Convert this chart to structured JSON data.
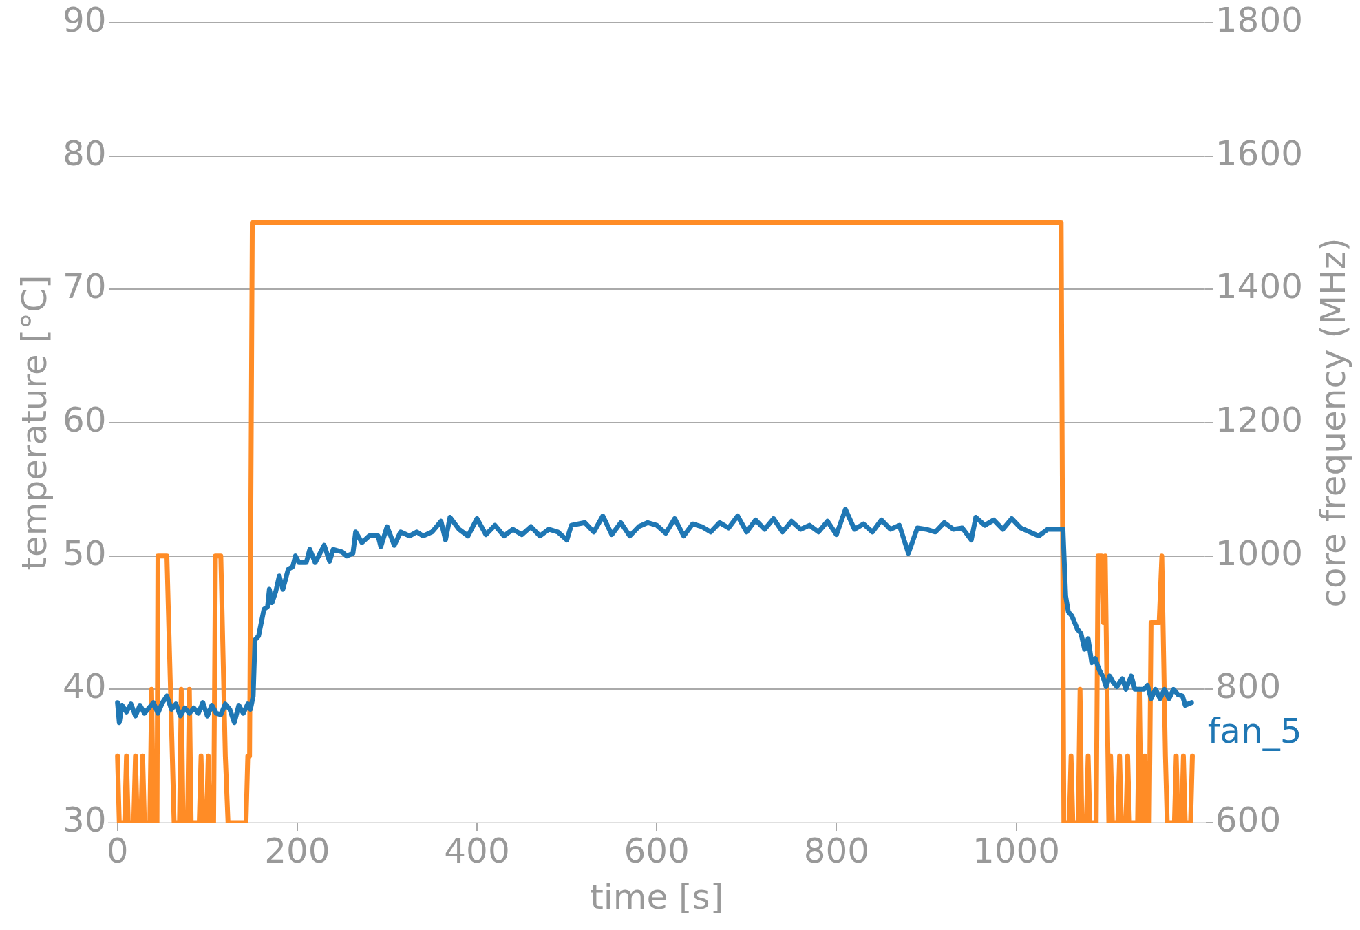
{
  "chart_data": {
    "type": "line",
    "xlabel": "time [s]",
    "ylabel": "temperature [°C]",
    "y2label": "core frequency (MHz)",
    "grid": "y",
    "xlim": [
      -10,
      1210
    ],
    "xticks": [
      0,
      200,
      400,
      600,
      800,
      1000
    ],
    "ylim": [
      30,
      90
    ],
    "yticks": [
      30,
      40,
      50,
      60,
      70,
      80,
      90
    ],
    "y2lim": [
      600,
      1800
    ],
    "y2ticks": [
      600,
      800,
      1000,
      1200,
      1400,
      1600,
      1800
    ],
    "series": [
      {
        "name": "fan_5",
        "color": "#1f77b4",
        "axis": "y",
        "x": [
          0,
          2,
          5,
          10,
          15,
          20,
          25,
          30,
          35,
          40,
          45,
          50,
          55,
          60,
          65,
          70,
          75,
          80,
          85,
          90,
          95,
          100,
          105,
          110,
          115,
          120,
          125,
          130,
          135,
          140,
          145,
          148,
          151,
          153,
          157,
          160,
          163,
          167,
          169,
          172,
          176,
          180,
          184,
          190,
          195,
          198,
          202,
          210,
          214,
          220,
          230,
          236,
          240,
          250,
          255,
          262,
          265,
          272,
          280,
          290,
          293,
          300,
          308,
          315,
          325,
          333,
          340,
          350,
          360,
          365,
          370,
          380,
          390,
          400,
          410,
          420,
          430,
          440,
          450,
          460,
          470,
          480,
          490,
          500,
          505,
          520,
          530,
          540,
          550,
          560,
          570,
          580,
          590,
          600,
          610,
          620,
          630,
          640,
          650,
          660,
          670,
          680,
          690,
          700,
          710,
          720,
          730,
          740,
          750,
          760,
          770,
          780,
          790,
          800,
          810,
          820,
          830,
          840,
          850,
          860,
          870,
          880,
          890,
          900,
          910,
          920,
          930,
          940,
          950,
          955,
          965,
          975,
          985,
          995,
          1005,
          1015,
          1025,
          1035,
          1045,
          1052,
          1055,
          1058,
          1062,
          1068,
          1072,
          1076,
          1080,
          1084,
          1088,
          1092,
          1096,
          1100,
          1104,
          1108,
          1112,
          1118,
          1122,
          1128,
          1132,
          1136,
          1142,
          1146,
          1150,
          1155,
          1160,
          1165,
          1170,
          1175,
          1180,
          1185,
          1188,
          1195
        ],
        "values": [
          39,
          37.5,
          38.8,
          38.3,
          38.9,
          38,
          38.8,
          38.2,
          38.6,
          39,
          38.2,
          39,
          39.5,
          38.5,
          38.9,
          38,
          38.6,
          38.2,
          38.6,
          38.2,
          39,
          38,
          38.8,
          38.2,
          38.1,
          38.9,
          38.5,
          37.5,
          38.8,
          38.2,
          38.9,
          38.5,
          39.5,
          43.7,
          44,
          45,
          46,
          46.2,
          47.5,
          46.5,
          47.3,
          48.5,
          47.5,
          49,
          49.2,
          50,
          49.5,
          49.5,
          50.5,
          49.5,
          50.8,
          49.6,
          50.5,
          50.3,
          50,
          50.2,
          51.8,
          51,
          51.5,
          51.5,
          50.7,
          52.2,
          50.8,
          51.8,
          51.5,
          51.8,
          51.5,
          51.8,
          52.6,
          51.2,
          52.9,
          52,
          51.5,
          52.8,
          51.6,
          52.3,
          51.5,
          52,
          51.6,
          52.2,
          51.5,
          52,
          51.8,
          51.2,
          52.3,
          52.5,
          51.8,
          53,
          51.6,
          52.5,
          51.5,
          52.2,
          52.5,
          52.3,
          51.7,
          52.8,
          51.5,
          52.4,
          52.2,
          51.8,
          52.5,
          52.1,
          53,
          51.8,
          52.7,
          52,
          52.8,
          51.8,
          52.6,
          52,
          52.3,
          51.8,
          52.6,
          51.6,
          53.5,
          52,
          52.4,
          51.8,
          52.7,
          52,
          52.3,
          50.2,
          52.1,
          52,
          51.8,
          52.5,
          52,
          52.1,
          51.2,
          52.9,
          52.3,
          52.7,
          52,
          52.8,
          52.1,
          51.8,
          51.5,
          52,
          52,
          52,
          47,
          45.8,
          45.5,
          44.5,
          44.2,
          43,
          43.8,
          42,
          42.3,
          41.5,
          41,
          40.2,
          41,
          40.5,
          40.2,
          40.8,
          40,
          41,
          40,
          40,
          40,
          40.3,
          39.3,
          40,
          39.3,
          40,
          39.3,
          40,
          39.6,
          39.5,
          38.8,
          39
        ]
      },
      {
        "color": "#ff8c26",
        "axis": "y2",
        "x": [
          0,
          2,
          8,
          10,
          12,
          18,
          20,
          22,
          26,
          28,
          30,
          36,
          38,
          40,
          44,
          45,
          55,
          61,
          63,
          69,
          71,
          73,
          78,
          80,
          82,
          91,
          93,
          95,
          99,
          101,
          103,
          107,
          109,
          115,
          120,
          123,
          143,
          145,
          147,
          150,
          1050,
          1053,
          1059,
          1061,
          1063,
          1069,
          1071,
          1073,
          1078,
          1080,
          1082,
          1089,
          1091,
          1095,
          1097,
          1099,
          1103,
          1105,
          1107,
          1113,
          1115,
          1117,
          1122,
          1124,
          1126,
          1135,
          1137,
          1139,
          1141,
          1143,
          1146,
          1148,
          1150,
          1159,
          1162,
          1166,
          1168,
          1176,
          1178,
          1180,
          1184,
          1186,
          1188,
          1194,
          1196
        ],
        "values": [
          700,
          600,
          600,
          700,
          600,
          600,
          700,
          600,
          600,
          700,
          600,
          600,
          800,
          600,
          600,
          1000,
          1000,
          700,
          600,
          600,
          800,
          600,
          600,
          800,
          600,
          600,
          700,
          600,
          600,
          700,
          600,
          600,
          1000,
          1000,
          700,
          600,
          600,
          700,
          700,
          1500,
          1500,
          600,
          600,
          700,
          600,
          600,
          800,
          600,
          600,
          700,
          600,
          600,
          1000,
          1000,
          900,
          1000,
          600,
          700,
          600,
          600,
          700,
          600,
          600,
          700,
          600,
          600,
          800,
          600,
          600,
          700,
          600,
          600,
          900,
          900,
          1000,
          700,
          600,
          600,
          700,
          600,
          600,
          700,
          600,
          600,
          700
        ]
      }
    ]
  }
}
